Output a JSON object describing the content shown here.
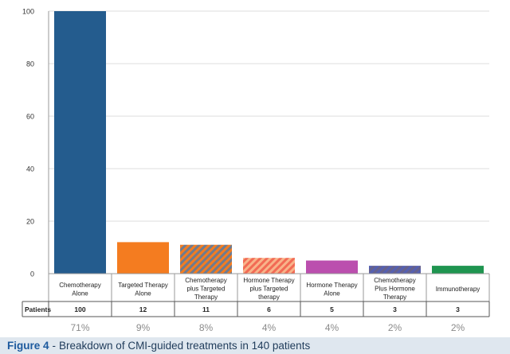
{
  "chart_data": {
    "type": "bar",
    "categories": [
      [
        "Chemotherapy",
        "Alone"
      ],
      [
        "Targeted Therapy",
        "Alone"
      ],
      [
        "Chemotherapy",
        "plus Targeted",
        "Therapy"
      ],
      [
        "Hormone Therapy",
        "plus Targeted",
        "therapy"
      ],
      [
        "Hormone Therapy",
        "Alone"
      ],
      [
        "Chemotherapy",
        "Plus Hormone",
        "Therapy"
      ],
      [
        "Immunotherapy"
      ]
    ],
    "values": [
      100,
      12,
      11,
      6,
      5,
      3,
      3
    ],
    "percentages": [
      "71%",
      "9%",
      "8%",
      "4%",
      "4%",
      "2%",
      "2%"
    ],
    "bar_colors": [
      "#245c8e",
      "#f47c20",
      "#6e7b8f",
      "#f26b55",
      "#bb4fae",
      "#66618c",
      "#1f9550"
    ],
    "bar_hatch": [
      false,
      false,
      true,
      true,
      false,
      true,
      false
    ],
    "hatch_colors": [
      "",
      "",
      "#f47c20",
      "#f8b48a",
      "",
      "#5560b0",
      ""
    ],
    "yticks": [
      0,
      20,
      40,
      60,
      80,
      100
    ],
    "ylim": [
      0,
      100
    ],
    "table_row_label": "Patients",
    "grid": true
  },
  "caption": {
    "label": "Figure 4",
    "separator": "-",
    "text": "Breakdown of CMI-guided treatments in 140 patients"
  }
}
